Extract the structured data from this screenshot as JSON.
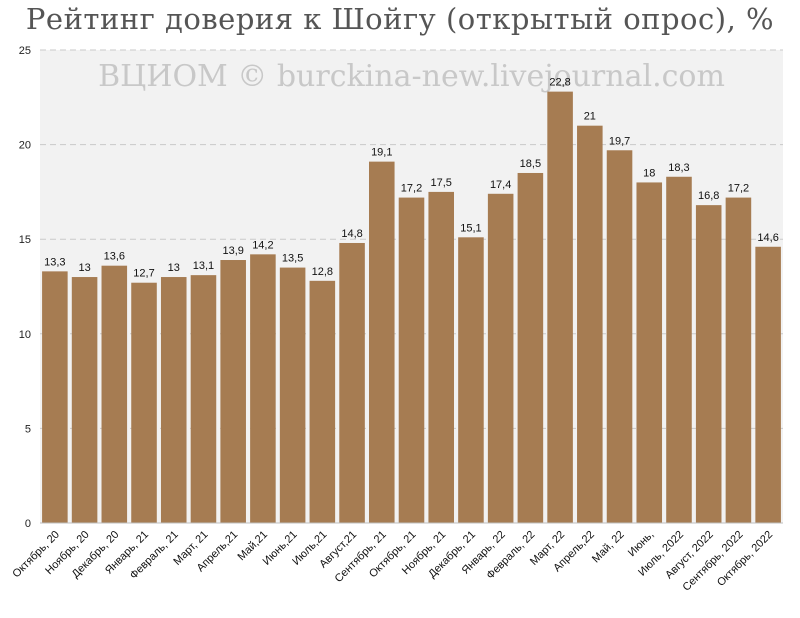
{
  "chart_data": {
    "type": "bar",
    "title": "Рейтинг доверия к Шойгу (открытый опрос), %",
    "watermark": "ВЦИОМ © burckina-new.livejournal.com",
    "categories": [
      "Октябрь, 20",
      "Ноябрь, 20",
      "Декабрь, 20",
      "Январь, 21",
      "Февраль, 21",
      "Март, 21",
      "Апрель,21",
      "Май,21",
      "Июнь,21",
      "Июль,21",
      "Август,21",
      "Сентябрь, 21",
      "Октябрь, 21",
      "Ноябрь, 21",
      "Декабрь, 21",
      "Январь, 22",
      "Февраль, 22",
      "Март, 22",
      "Апрель,22",
      "Май, 22",
      "Июнь,",
      "Июль, 2022",
      "Август, 2022",
      "Сентябрь, 2022",
      "Октябрь, 2022"
    ],
    "values": [
      13.3,
      13,
      13.6,
      12.7,
      13,
      13.1,
      13.9,
      14.2,
      13.5,
      12.8,
      14.8,
      19.1,
      17.2,
      17.5,
      15.1,
      17.4,
      18.5,
      22.8,
      21,
      19.7,
      18,
      18.3,
      16.8,
      17.2,
      14.6
    ],
    "value_labels": [
      "13,3",
      "13",
      "13,6",
      "12,7",
      "13",
      "13,1",
      "13,9",
      "14,2",
      "13,5",
      "12,8",
      "14,8",
      "19,1",
      "17,2",
      "17,5",
      "15,1",
      "17,4",
      "18,5",
      "22,8",
      "21",
      "19,7",
      "18",
      "18,3",
      "16,8",
      "17,2",
      "14,6"
    ],
    "ylim": [
      0,
      25
    ],
    "yticks": [
      0,
      5,
      10,
      15,
      20,
      25
    ],
    "grid": true,
    "bar_color": "#a67c52",
    "plot_background": "#f2f2f2"
  }
}
